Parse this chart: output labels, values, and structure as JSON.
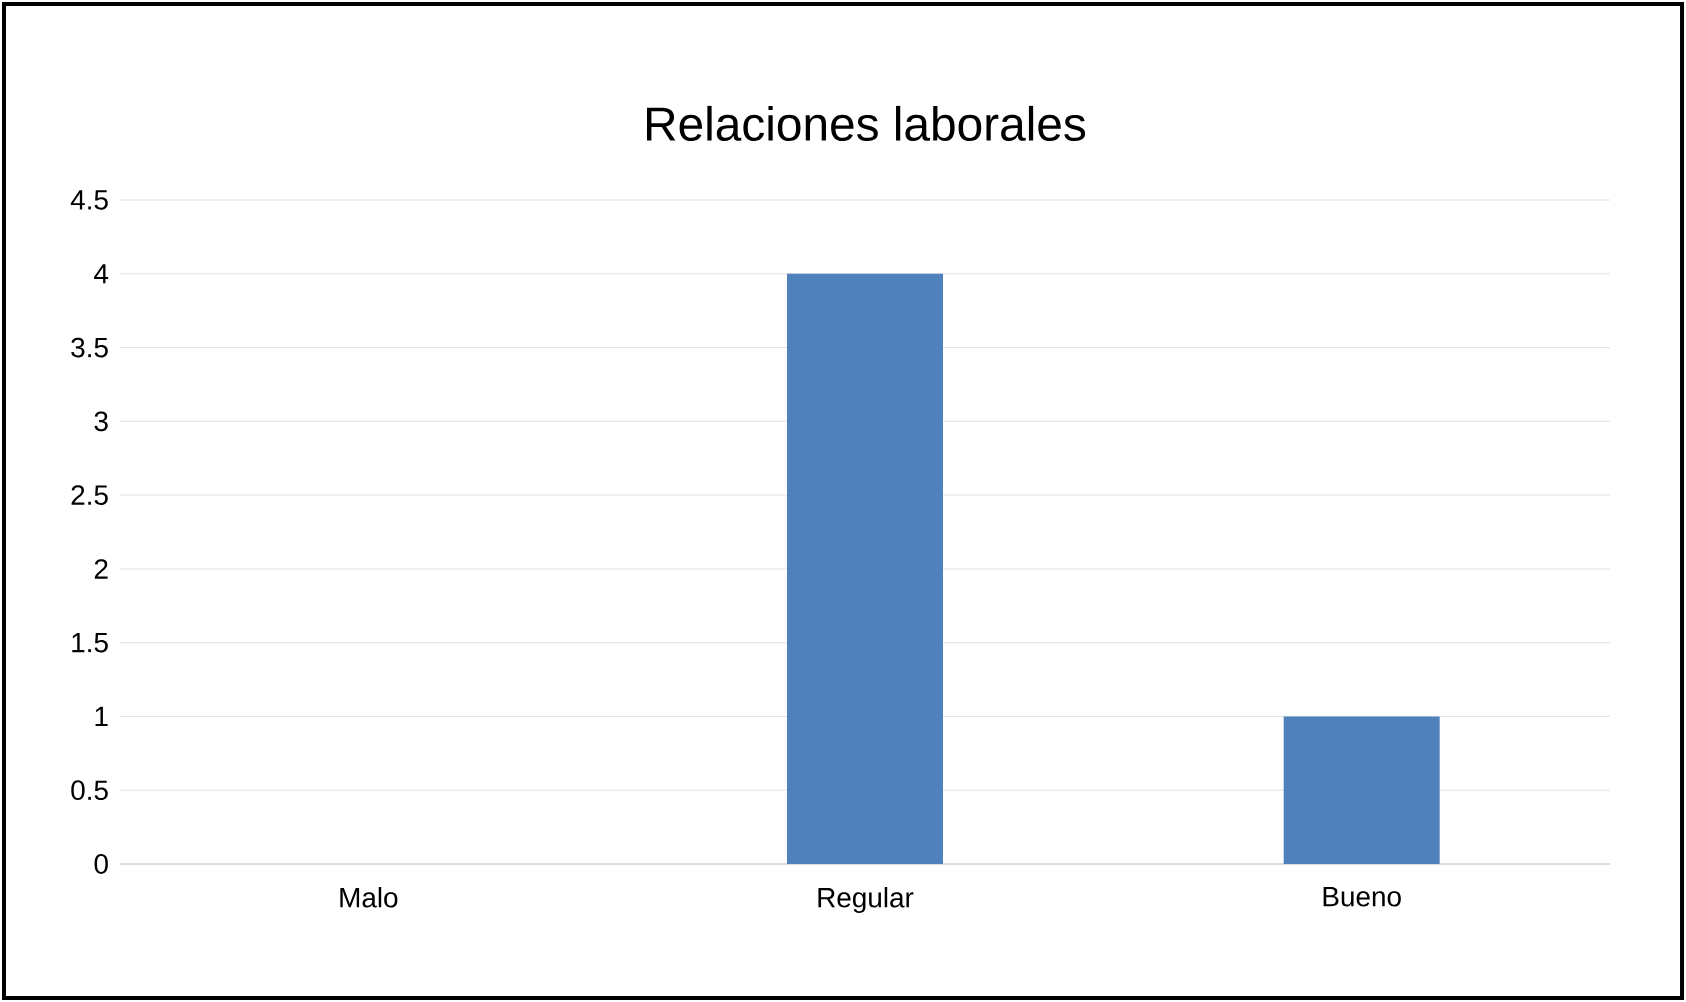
{
  "chart_data": {
    "type": "bar",
    "title": "Relaciones laborales",
    "categories": [
      "Malo",
      "Regular",
      "Bueno"
    ],
    "values": [
      0,
      4,
      1
    ],
    "color": "#4f81bd",
    "ylim": [
      0,
      4.5
    ],
    "yticks": [
      0,
      0.5,
      1,
      1.5,
      2,
      2.5,
      3,
      3.5,
      4,
      4.5
    ],
    "grid": "y"
  }
}
